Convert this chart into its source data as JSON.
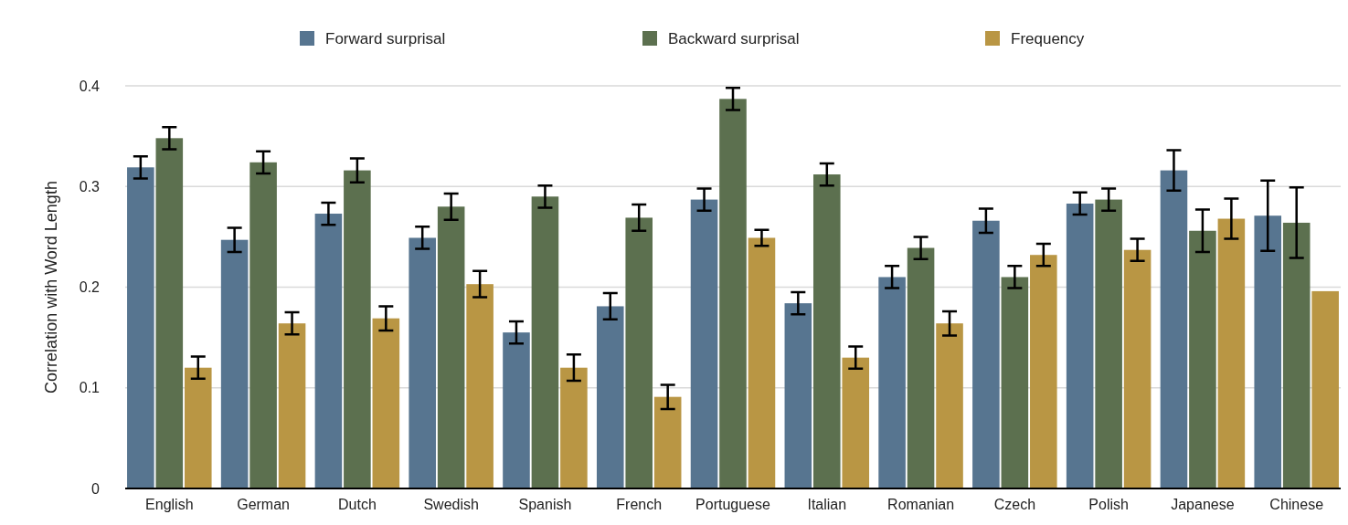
{
  "chart_data": {
    "type": "bar",
    "ylabel": "Correlation with Word Length",
    "categories": [
      "English",
      "German",
      "Dutch",
      "Swedish",
      "Spanish",
      "French",
      "Portuguese",
      "Italian",
      "Romanian",
      "Czech",
      "Polish",
      "Japanese",
      "Chinese"
    ],
    "series": [
      {
        "name": "Forward surprisal",
        "color": "#577590",
        "values": [
          0.319,
          0.247,
          0.273,
          0.249,
          0.155,
          0.181,
          0.287,
          0.184,
          0.21,
          0.266,
          0.283,
          0.316,
          0.271
        ],
        "errors": [
          0.011,
          0.012,
          0.011,
          0.011,
          0.011,
          0.013,
          0.011,
          0.011,
          0.011,
          0.012,
          0.011,
          0.02,
          0.035
        ]
      },
      {
        "name": "Backward surprisal",
        "color": "#5c704f",
        "values": [
          0.348,
          0.324,
          0.316,
          0.28,
          0.29,
          0.269,
          0.387,
          0.312,
          0.239,
          0.21,
          0.287,
          0.256,
          0.264
        ],
        "errors": [
          0.011,
          0.011,
          0.012,
          0.013,
          0.011,
          0.013,
          0.011,
          0.011,
          0.011,
          0.011,
          0.011,
          0.021,
          0.035
        ]
      },
      {
        "name": "Frequency",
        "color": "#b99644",
        "values": [
          0.12,
          0.164,
          0.169,
          0.203,
          0.12,
          0.091,
          0.249,
          0.13,
          0.164,
          0.232,
          0.237,
          0.268,
          0.196
        ],
        "errors": [
          0.011,
          0.011,
          0.012,
          0.013,
          0.013,
          0.012,
          0.008,
          0.011,
          0.012,
          0.011,
          0.011,
          0.02,
          null
        ]
      }
    ],
    "ylim": [
      0,
      0.4
    ],
    "yticks": [
      0,
      0.1,
      0.2,
      0.3,
      0.4
    ],
    "grid": "y",
    "legend": "top"
  }
}
